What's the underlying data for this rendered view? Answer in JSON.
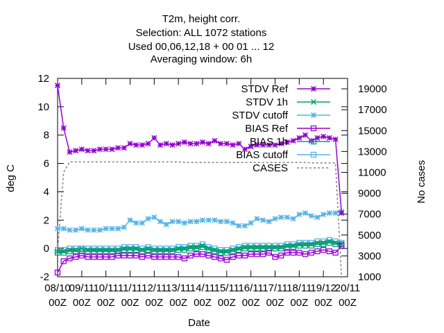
{
  "chart_data": {
    "type": "line",
    "title_lines": [
      "T2m, height corr.",
      "Selection: ALL    1072 stations",
      "Used  00,06,12,18 + 00 01 ... 12",
      "Averaging window:  6h"
    ],
    "xlabel": "Date",
    "ylabel": "deg C",
    "y2label": "No cases",
    "ylim": [
      -2,
      12
    ],
    "y2lim": [
      1000,
      20000
    ],
    "xlim": [
      0,
      12
    ],
    "yticks": [
      "-2",
      "0",
      "2",
      "4",
      "6",
      "8",
      "10",
      "12"
    ],
    "y2ticks": [
      "1000",
      "3000",
      "5000",
      "7000",
      "9000",
      "11000",
      "13000",
      "15000",
      "17000",
      "19000"
    ],
    "xticks": [
      {
        "top": "08/10",
        "bottom": "00Z"
      },
      {
        "top": "09/11",
        "bottom": "00Z"
      },
      {
        "top": "10/11",
        "bottom": "00Z"
      },
      {
        "top": "11/11",
        "bottom": "00Z"
      },
      {
        "top": "12/11",
        "bottom": "00Z"
      },
      {
        "top": "13/11",
        "bottom": "00Z"
      },
      {
        "top": "14/11",
        "bottom": "00Z"
      },
      {
        "top": "15/11",
        "bottom": "00Z"
      },
      {
        "top": "16/11",
        "bottom": "00Z"
      },
      {
        "top": "17/11",
        "bottom": "00Z"
      },
      {
        "top": "18/11",
        "bottom": "00Z"
      },
      {
        "top": "19/12",
        "bottom": "00Z"
      },
      {
        "top": "20/11",
        "bottom": "00Z"
      }
    ],
    "legend_position": "top-right",
    "grid": false,
    "x_days": [
      0.0,
      0.25,
      0.5,
      0.75,
      1.0,
      1.25,
      1.5,
      1.75,
      2.0,
      2.25,
      2.5,
      2.75,
      3.0,
      3.25,
      3.5,
      3.75,
      4.0,
      4.25,
      4.5,
      4.75,
      5.0,
      5.25,
      5.5,
      5.75,
      6.0,
      6.25,
      6.5,
      6.75,
      7.0,
      7.25,
      7.5,
      7.75,
      8.0,
      8.25,
      8.5,
      8.75,
      9.0,
      9.25,
      9.5,
      9.75,
      10.0,
      10.25,
      10.5,
      10.75,
      11.0,
      11.25,
      11.5,
      11.75
    ],
    "series": [
      {
        "name": "STDV Ref",
        "color": "#9400d3",
        "marker": "star",
        "axis": "y1",
        "values": [
          11.5,
          8.5,
          6.8,
          6.9,
          7.0,
          6.9,
          6.9,
          7.0,
          7.0,
          7.0,
          7.1,
          7.1,
          7.4,
          7.3,
          7.3,
          7.4,
          7.8,
          7.3,
          7.4,
          7.3,
          7.4,
          7.5,
          7.4,
          7.4,
          7.5,
          7.4,
          7.6,
          7.4,
          7.4,
          7.3,
          7.4,
          7.0,
          7.2,
          7.3,
          7.3,
          7.3,
          7.3,
          7.4,
          7.5,
          7.6,
          7.8,
          8.0,
          7.6,
          7.8,
          7.9,
          7.8,
          7.7,
          2.5
        ]
      },
      {
        "name": "STDV 1h",
        "color": "#009e73",
        "marker": "cross",
        "axis": "y1",
        "values": [
          -0.2,
          -0.2,
          -0.1,
          -0.1,
          0.0,
          -0.1,
          -0.1,
          -0.1,
          -0.1,
          -0.1,
          -0.1,
          0.0,
          0.0,
          0.0,
          -0.1,
          0.0,
          -0.1,
          -0.1,
          -0.1,
          -0.1,
          0.0,
          0.0,
          0.1,
          0.1,
          0.2,
          0.0,
          -0.1,
          -0.2,
          -0.2,
          -0.1,
          0.0,
          0.1,
          0.1,
          0.1,
          0.1,
          0.1,
          0.1,
          0.1,
          0.2,
          0.2,
          0.3,
          0.3,
          0.3,
          0.4,
          0.4,
          0.5,
          0.4,
          0.3
        ]
      },
      {
        "name": "STDV cutoff",
        "color": "#56b4e9",
        "marker": "star",
        "axis": "y1",
        "values": [
          1.4,
          1.4,
          1.3,
          1.3,
          1.4,
          1.3,
          1.3,
          1.3,
          1.4,
          1.4,
          1.4,
          1.5,
          2.0,
          1.8,
          1.8,
          2.1,
          2.2,
          1.9,
          1.7,
          1.9,
          1.9,
          1.8,
          1.9,
          1.9,
          2.0,
          2.0,
          2.0,
          1.9,
          1.9,
          1.8,
          1.6,
          1.6,
          1.8,
          2.1,
          2.0,
          1.9,
          2.1,
          2.2,
          2.2,
          2.1,
          2.4,
          2.5,
          2.3,
          2.2,
          2.4,
          2.5,
          2.5,
          2.6
        ]
      },
      {
        "name": "BIAS Ref",
        "color": "#9400d3",
        "marker": "box",
        "axis": "y1",
        "values": [
          -1.7,
          -0.9,
          -0.7,
          -0.6,
          -0.5,
          -0.6,
          -0.6,
          -0.6,
          -0.6,
          -0.6,
          -0.5,
          -0.5,
          -0.5,
          -0.5,
          -0.6,
          -0.5,
          -0.6,
          -0.6,
          -0.6,
          -0.6,
          -0.6,
          -0.7,
          -0.5,
          -0.4,
          -0.4,
          -0.5,
          -0.6,
          -0.7,
          -0.8,
          -0.6,
          -0.5,
          -0.5,
          -0.4,
          -0.4,
          -0.4,
          -0.3,
          -0.6,
          -0.5,
          -0.3,
          -0.3,
          -0.3,
          -0.4,
          -0.3,
          -0.2,
          -0.1,
          -0.2,
          -0.3,
          0.2
        ]
      },
      {
        "name": "BIAS 1h",
        "color": "#009e73",
        "marker": "box",
        "axis": "y1",
        "values": [
          -0.3,
          -0.3,
          -0.2,
          -0.2,
          -0.2,
          -0.2,
          -0.2,
          -0.2,
          -0.2,
          -0.2,
          -0.2,
          -0.1,
          -0.1,
          -0.1,
          -0.2,
          -0.1,
          -0.2,
          -0.2,
          -0.2,
          -0.2,
          -0.1,
          -0.1,
          0.0,
          0.0,
          0.1,
          -0.1,
          -0.2,
          -0.3,
          -0.3,
          -0.2,
          -0.1,
          0.0,
          0.0,
          0.0,
          0.0,
          0.0,
          0.0,
          0.0,
          0.1,
          0.1,
          0.2,
          0.2,
          0.2,
          0.3,
          0.3,
          0.4,
          0.3,
          0.3
        ]
      },
      {
        "name": "BIAS cutoff",
        "color": "#56b4e9",
        "marker": "box",
        "axis": "y1",
        "values": [
          -0.1,
          -0.1,
          0.0,
          0.0,
          0.0,
          0.0,
          0.0,
          0.0,
          0.0,
          0.0,
          0.0,
          0.1,
          0.1,
          0.1,
          0.0,
          0.1,
          0.0,
          0.0,
          0.0,
          0.0,
          0.1,
          0.1,
          0.2,
          0.2,
          0.3,
          0.1,
          0.0,
          -0.1,
          -0.1,
          0.0,
          0.1,
          0.2,
          0.2,
          0.2,
          0.2,
          0.2,
          0.2,
          0.2,
          0.3,
          0.3,
          0.4,
          0.4,
          0.4,
          0.5,
          0.5,
          0.6,
          0.5,
          0.4
        ]
      },
      {
        "name": "CASES",
        "color": "#808080",
        "marker": "none",
        "dashed": true,
        "axis": "y2",
        "values": [
          3500,
          11000,
          12000,
          12000,
          12000,
          12000,
          12000,
          12000,
          12000,
          12000,
          12000,
          12000,
          12000,
          12000,
          12000,
          12000,
          12000,
          12000,
          12000,
          12000,
          12000,
          11950,
          11950,
          11950,
          11950,
          11950,
          11950,
          11950,
          11950,
          11950,
          11950,
          11950,
          11950,
          11950,
          11950,
          11950,
          11950,
          11950,
          11950,
          11950,
          11950,
          11950,
          11900,
          11900,
          11900,
          11900,
          11900,
          700
        ]
      }
    ]
  }
}
